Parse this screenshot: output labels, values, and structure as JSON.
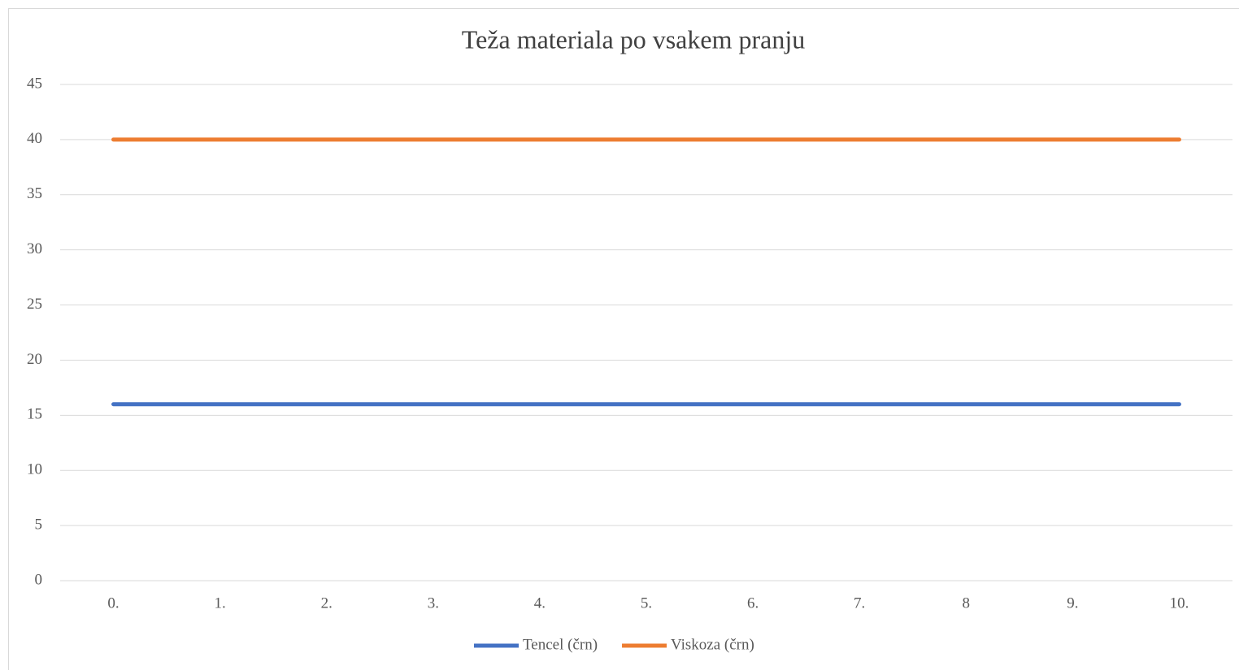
{
  "chart_data": {
    "type": "line",
    "title": "Teža materiala po vsakem pranju",
    "categories": [
      "0.",
      "1.",
      "2.",
      "3.",
      "4.",
      "5.",
      "6.",
      "7.",
      "8",
      "9.",
      "10."
    ],
    "series": [
      {
        "name": "Tencel (črn)",
        "color": "#4472c4",
        "values": [
          16,
          16,
          16,
          16,
          16,
          16,
          16,
          16,
          16,
          16,
          16
        ]
      },
      {
        "name": "Viskoza (črn)",
        "color": "#ed7d31",
        "values": [
          40,
          40,
          40,
          40,
          40,
          40,
          40,
          40,
          40,
          40,
          40
        ]
      }
    ],
    "ylim": [
      0,
      45
    ],
    "yticks": [
      0,
      5,
      10,
      15,
      20,
      25,
      30,
      35,
      40,
      45
    ],
    "grid": true,
    "legend": "bottom"
  }
}
